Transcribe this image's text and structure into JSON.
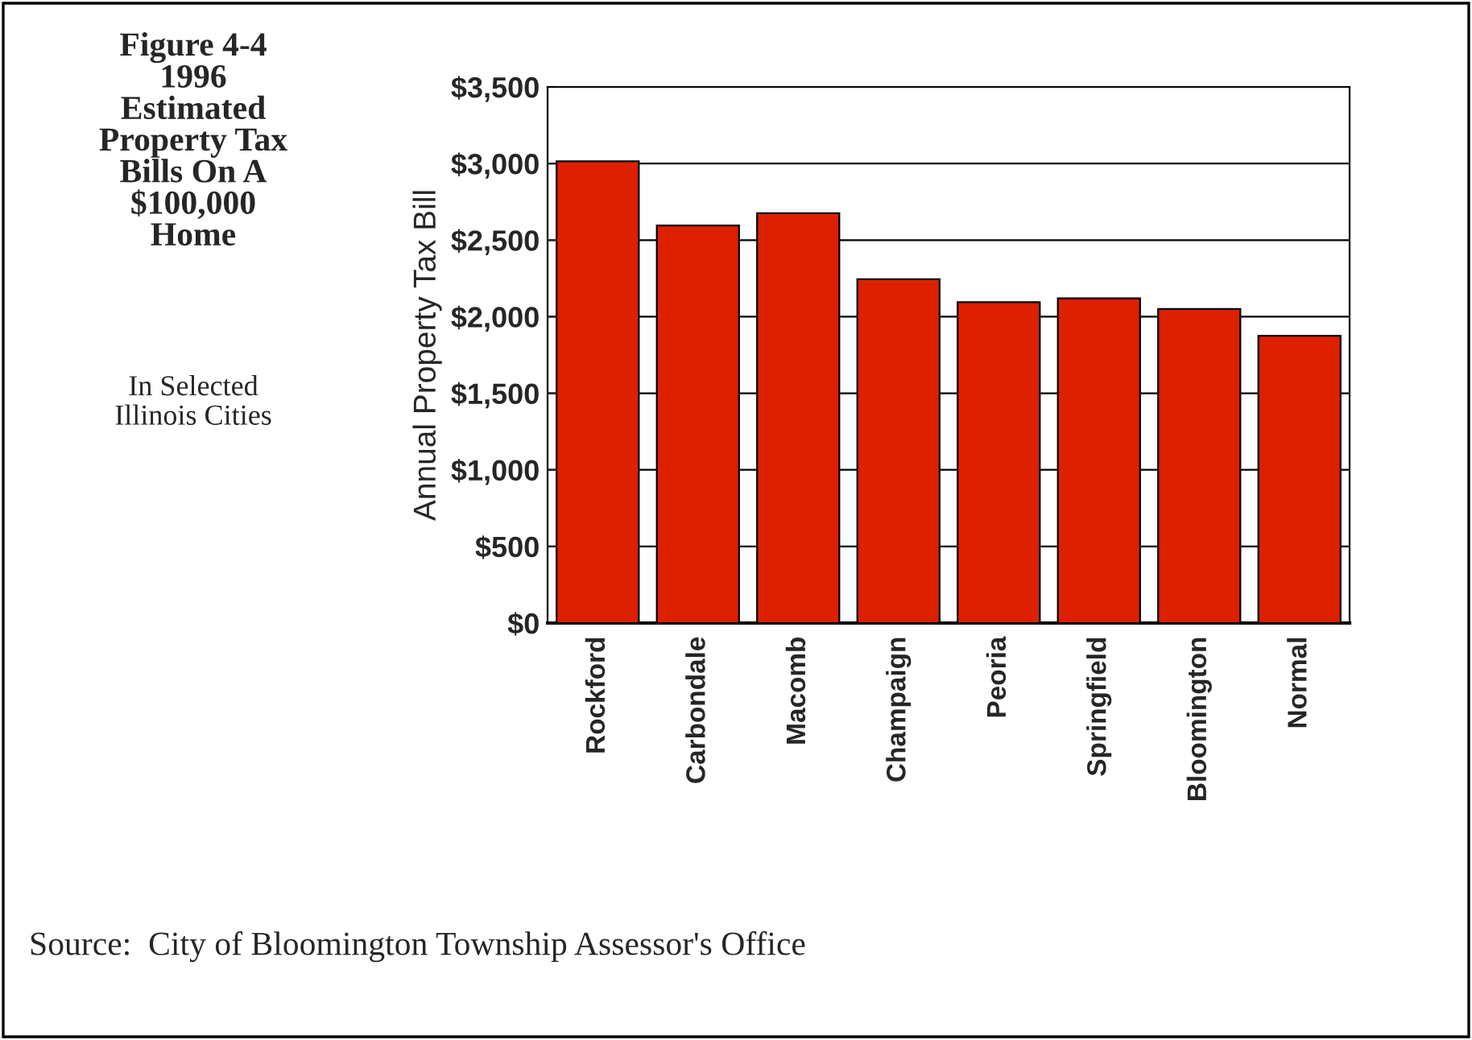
{
  "chart_data": {
    "type": "bar",
    "title": "Figure 4-4\n1996\nEstimated\nProperty Tax\nBills On A\n$100,000\nHome",
    "subtitle": "In Selected\nIllinois Cities",
    "ylabel": "Annual Property Tax Bill",
    "annotations": [
      "Source:  City of Bloomington Township Assessor's Office"
    ],
    "categories": [
      "Rockford",
      "Carbondale",
      "Macomb",
      "Champaign",
      "Peoria",
      "Springfield",
      "Bloomington",
      "Normal"
    ],
    "values": [
      3015,
      2595,
      2675,
      2245,
      2095,
      2120,
      2050,
      1875
    ],
    "color": "#dd2000",
    "ylim": [
      0,
      3500
    ],
    "yticks": [
      {
        "value": 0,
        "label": "$0"
      },
      {
        "value": 500,
        "label": "$500"
      },
      {
        "value": 1000,
        "label": "$1,000"
      },
      {
        "value": 1500,
        "label": "$1,500"
      },
      {
        "value": 2000,
        "label": "$2,000"
      },
      {
        "value": 2500,
        "label": "$2,500"
      },
      {
        "value": 3000,
        "label": "$3,000"
      },
      {
        "value": 3500,
        "label": "$3,500"
      }
    ],
    "grid": "y",
    "legend": false
  }
}
